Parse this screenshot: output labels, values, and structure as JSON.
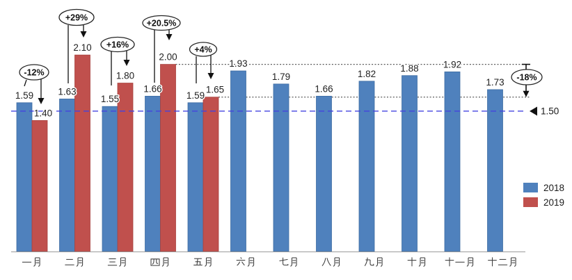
{
  "chart_data": {
    "type": "bar",
    "title": "",
    "xlabel": "",
    "ylabel": "",
    "ylim": [
      0,
      2.3
    ],
    "grid": "off",
    "value_axis_visible": false,
    "categories": [
      "一月",
      "二月",
      "三月",
      "四月",
      "五月",
      "六月",
      "七月",
      "八月",
      "九月",
      "十月",
      "十一月",
      "十二月"
    ],
    "series": [
      {
        "name": "2018",
        "color": "#4f81bd",
        "edge_color": "#3f6da3",
        "values": [
          1.59,
          1.63,
          1.55,
          1.66,
          1.59,
          1.93,
          1.79,
          1.66,
          1.82,
          1.88,
          1.92,
          1.73
        ]
      },
      {
        "name": "2019",
        "color": "#c0504d",
        "edge_color": "#a8433f",
        "values": [
          1.4,
          2.1,
          1.8,
          2.0,
          1.65,
          null,
          null,
          null,
          null,
          null,
          null,
          null
        ]
      }
    ],
    "legend": {
      "position": "right",
      "entries": [
        {
          "label": "2018",
          "color": "#4f81bd"
        },
        {
          "label": "2019",
          "color": "#c0504d"
        }
      ]
    },
    "annotations": {
      "percent_callouts": [
        {
          "label": "-12%",
          "category": "一月"
        },
        {
          "label": "+29%",
          "category": "二月"
        },
        {
          "label": "+16%",
          "category": "三月"
        },
        {
          "label": "+20.5%",
          "category": "四月"
        },
        {
          "label": "+4%",
          "category": "五月"
        },
        {
          "label": "-18%",
          "category": "right-side-drop"
        }
      ],
      "dotted_reference_lines": [
        {
          "value": 2.0
        },
        {
          "value": 1.65
        }
      ],
      "dashed_reference_line": {
        "value": 1.5,
        "label": "1.50",
        "color": "#4343e0"
      }
    }
  }
}
